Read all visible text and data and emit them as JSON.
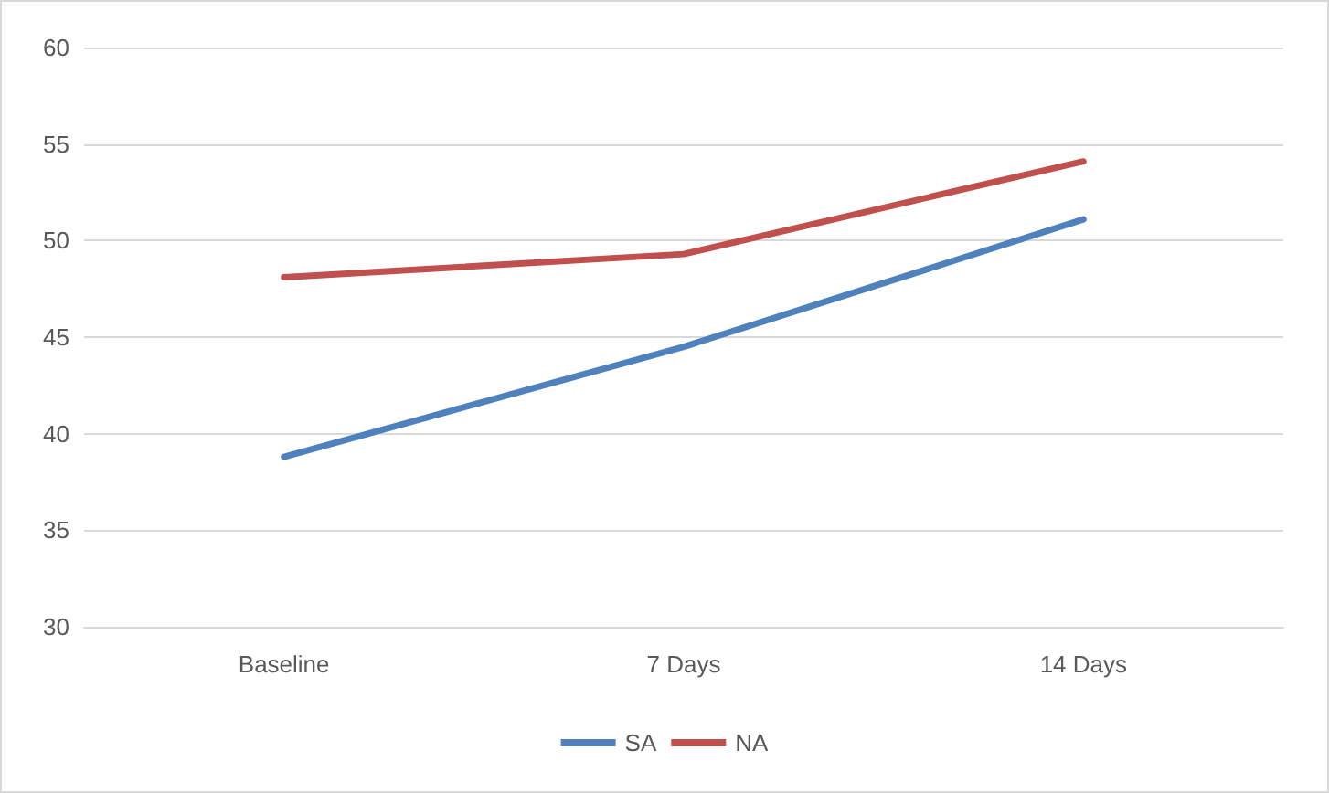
{
  "chart_data": {
    "type": "line",
    "categories": [
      "Baseline",
      "7 Days",
      "14 Days"
    ],
    "series": [
      {
        "name": "SA",
        "color": "#4f81bd",
        "values": [
          38.8,
          44.5,
          51.1
        ]
      },
      {
        "name": "NA",
        "color": "#c0504d",
        "values": [
          48.1,
          49.3,
          54.1
        ]
      }
    ],
    "ylim": [
      30,
      60
    ],
    "yticks": [
      30,
      35,
      40,
      45,
      50,
      55,
      60
    ],
    "grid": "y",
    "legend": "bottom",
    "marker": "none",
    "line_style": "solid"
  }
}
